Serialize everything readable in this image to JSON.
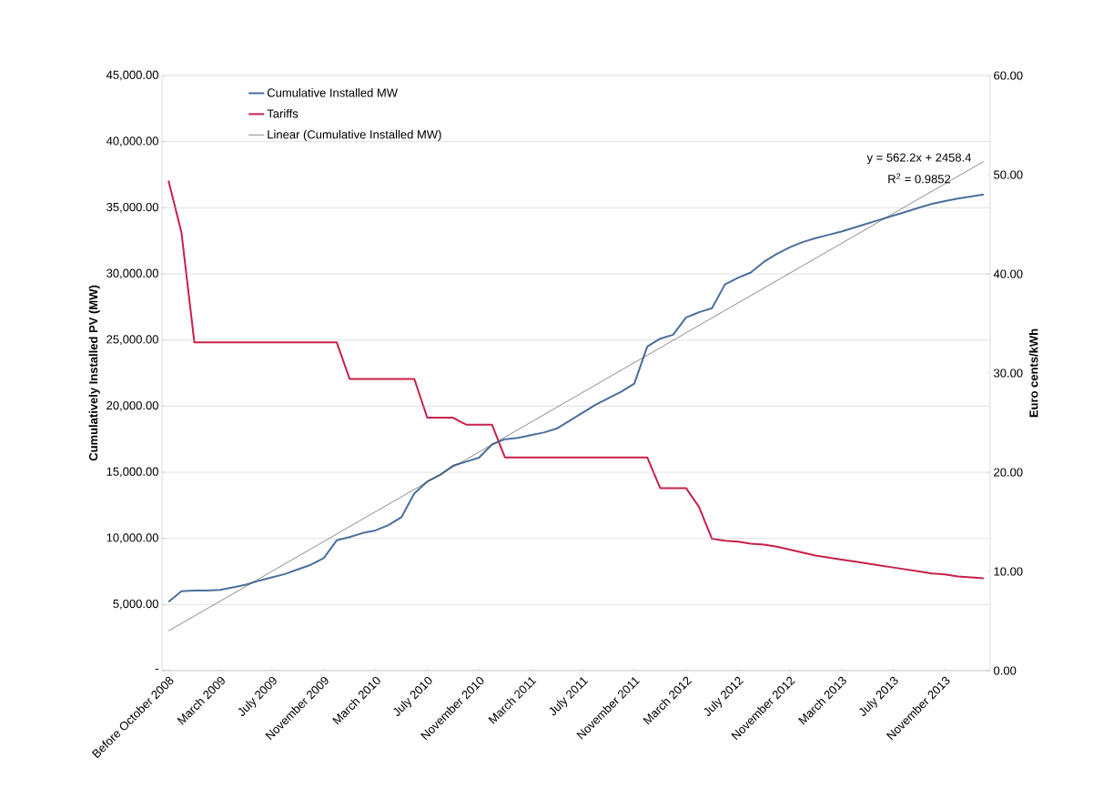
{
  "chart_data": {
    "type": "line",
    "ylabel": "Cumulatively Installed PV (MW)",
    "y2label": "Euro cents/kWh",
    "categories": [
      "Before October 2008",
      null,
      null,
      null,
      "March 2009",
      null,
      null,
      null,
      "July 2009",
      null,
      null,
      null,
      "November 2009",
      null,
      null,
      null,
      "March 2010",
      null,
      null,
      null,
      "July 2010",
      null,
      null,
      null,
      "November 2010",
      null,
      null,
      null,
      "March 2011",
      null,
      null,
      null,
      "July 2011",
      null,
      null,
      null,
      "November 2011",
      null,
      null,
      null,
      "March 2012",
      null,
      null,
      null,
      "July 2012",
      null,
      null,
      null,
      "November 2012",
      null,
      null,
      null,
      "March 2013",
      null,
      null,
      null,
      "July 2013",
      null,
      null,
      null,
      "November 2013",
      null,
      null,
      null
    ],
    "series": [
      {
        "name": "Cumulative Installed MW",
        "color": "#4a6f9e",
        "values": [
          5200,
          6000,
          6050,
          6050,
          6100,
          6300,
          6500,
          6800,
          7050,
          7300,
          7650,
          8000,
          8500,
          9850,
          10100,
          10400,
          10600,
          11000,
          11600,
          13400,
          14300,
          14800,
          15500,
          15800,
          16100,
          17100,
          17500,
          17600,
          17800,
          18000,
          18300,
          18900,
          19500,
          20100,
          20600,
          21100,
          21700,
          24500,
          25100,
          25400,
          26700,
          27100,
          27400,
          29200,
          29700,
          30100,
          30900,
          31500,
          32000,
          32400,
          32700,
          32950,
          33200,
          33500,
          33800,
          34100,
          34400,
          34700,
          35000,
          35300,
          35500,
          35700,
          35850,
          36000
        ]
      },
      {
        "name": "Tariffs",
        "color": "#c8204a",
        "axis": "y2",
        "values": [
          49.4,
          44.2,
          33.1,
          33.1,
          33.1,
          33.1,
          33.1,
          33.1,
          33.1,
          33.1,
          33.1,
          33.1,
          33.1,
          33.1,
          29.4,
          29.4,
          29.4,
          29.4,
          29.4,
          29.4,
          25.5,
          25.5,
          25.5,
          24.8,
          24.8,
          24.8,
          21.5,
          21.5,
          21.5,
          21.5,
          21.5,
          21.5,
          21.5,
          21.5,
          21.5,
          21.5,
          21.5,
          21.5,
          18.4,
          18.4,
          18.4,
          16.5,
          13.3,
          13.1,
          13.0,
          12.8,
          12.7,
          12.5,
          12.2,
          11.9,
          11.6,
          11.4,
          11.2,
          11.0,
          10.8,
          10.6,
          10.4,
          10.2,
          10.0,
          9.8,
          9.7,
          9.5,
          9.4,
          9.3
        ]
      },
      {
        "name": "Linear (Cumulative Installed MW)",
        "type": "line",
        "color": "#404040",
        "values": [
          3000,
          null,
          null,
          null,
          null,
          null,
          null,
          null,
          null,
          null,
          null,
          null,
          null,
          null,
          null,
          null,
          null,
          null,
          null,
          null,
          null,
          null,
          null,
          null,
          null,
          null,
          null,
          null,
          null,
          null,
          null,
          null,
          null,
          null,
          null,
          null,
          null,
          null,
          null,
          null,
          null,
          null,
          null,
          null,
          null,
          null,
          null,
          null,
          null,
          null,
          null,
          null,
          null,
          null,
          null,
          null,
          null,
          null,
          null,
          null,
          null,
          null,
          null,
          38500
        ]
      }
    ],
    "ylim": [
      0,
      45000
    ],
    "yticks": [
      {
        "value": 0,
        "label": "-"
      },
      {
        "value": 5000,
        "label": "5,000.00"
      },
      {
        "value": 10000,
        "label": "10,000.00"
      },
      {
        "value": 15000,
        "label": "15,000.00"
      },
      {
        "value": 20000,
        "label": "20,000.00"
      },
      {
        "value": 25000,
        "label": "25,000.00"
      },
      {
        "value": 30000,
        "label": "30,000.00"
      },
      {
        "value": 35000,
        "label": "35,000.00"
      },
      {
        "value": 40000,
        "label": "40,000.00"
      },
      {
        "value": 45000,
        "label": "45,000.00"
      }
    ],
    "y2lim": [
      0,
      60
    ],
    "y2ticks": [
      {
        "value": 0,
        "label": "0.00"
      },
      {
        "value": 10,
        "label": "10.00"
      },
      {
        "value": 20,
        "label": "20.00"
      },
      {
        "value": 30,
        "label": "30.00"
      },
      {
        "value": 40,
        "label": "40.00"
      },
      {
        "value": 50,
        "label": "50.00"
      },
      {
        "value": 60,
        "label": "60.00"
      }
    ],
    "annotations": [
      "y = 562.2x + 2458.4",
      "R$^{2}$ = 0.9852"
    ],
    "grid": "y",
    "legend": "top left"
  }
}
